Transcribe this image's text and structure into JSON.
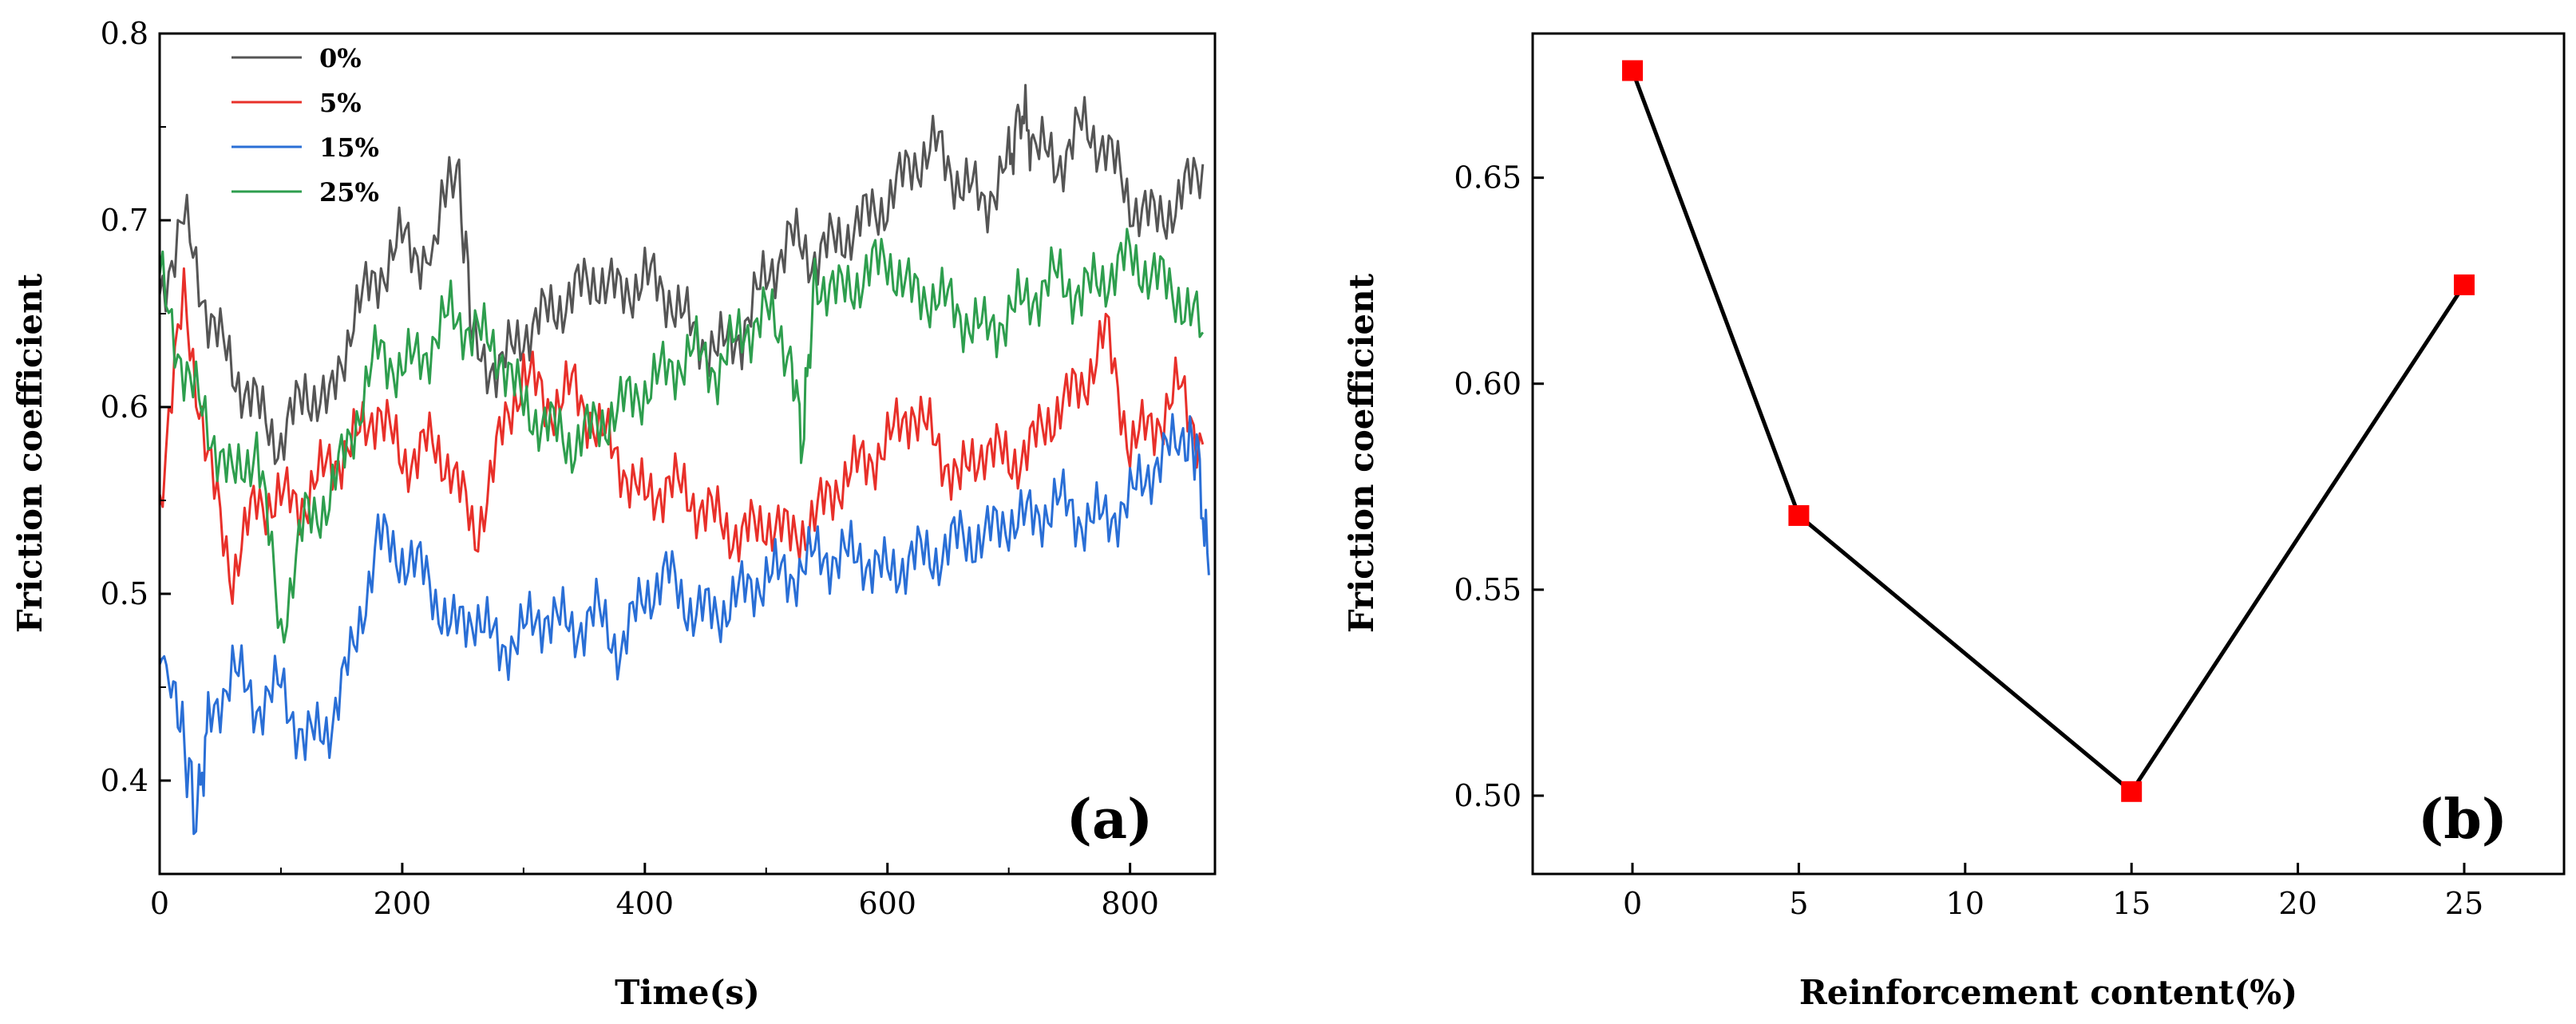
{
  "chart_data": [
    {
      "type": "line",
      "panel_label": "(a)",
      "xlabel": "Time(s)",
      "ylabel": "Friction coefficient",
      "xlim": [
        0,
        870
      ],
      "ylim": [
        0.35,
        0.8
      ],
      "xticks": [
        "0",
        "200",
        "400",
        "600",
        "800"
      ],
      "yticks": [
        "0.4",
        "0.5",
        "0.6",
        "0.7",
        "0.8"
      ],
      "legend_position": "top-left",
      "series": [
        {
          "name": "0%",
          "color": "#555555",
          "x": [
            0,
            20,
            40,
            60,
            80,
            100,
            120,
            140,
            160,
            180,
            200,
            220,
            245,
            260,
            280,
            300,
            320,
            340,
            360,
            380,
            400,
            420,
            440,
            460,
            480,
            500,
            520,
            540,
            560,
            580,
            600,
            620,
            640,
            660,
            680,
            700,
            710,
            720,
            740,
            760,
            780,
            800,
            820,
            840,
            860
          ],
          "y": [
            0.66,
            0.7,
            0.65,
            0.62,
            0.6,
            0.58,
            0.61,
            0.6,
            0.65,
            0.67,
            0.69,
            0.68,
            0.73,
            0.63,
            0.62,
            0.64,
            0.65,
            0.66,
            0.67,
            0.66,
            0.67,
            0.66,
            0.64,
            0.63,
            0.64,
            0.67,
            0.69,
            0.68,
            0.69,
            0.7,
            0.71,
            0.73,
            0.74,
            0.72,
            0.71,
            0.73,
            0.76,
            0.74,
            0.73,
            0.75,
            0.74,
            0.71,
            0.7,
            0.71,
            0.73
          ]
        },
        {
          "name": "5%",
          "color": "#e8302a",
          "x": [
            0,
            20,
            40,
            60,
            80,
            100,
            120,
            140,
            160,
            180,
            200,
            220,
            240,
            260,
            280,
            300,
            320,
            340,
            360,
            380,
            400,
            420,
            440,
            460,
            480,
            500,
            520,
            540,
            560,
            580,
            600,
            620,
            640,
            660,
            680,
            700,
            720,
            740,
            760,
            780,
            800,
            820,
            840,
            860
          ],
          "y": [
            0.55,
            0.66,
            0.57,
            0.51,
            0.55,
            0.55,
            0.55,
            0.57,
            0.58,
            0.6,
            0.57,
            0.58,
            0.57,
            0.53,
            0.58,
            0.62,
            0.6,
            0.61,
            0.59,
            0.57,
            0.55,
            0.56,
            0.55,
            0.54,
            0.53,
            0.54,
            0.53,
            0.54,
            0.56,
            0.57,
            0.58,
            0.6,
            0.58,
            0.56,
            0.58,
            0.57,
            0.58,
            0.6,
            0.61,
            0.64,
            0.58,
            0.59,
            0.61,
            0.58
          ]
        },
        {
          "name": "15%",
          "color": "#2a6fd6",
          "x": [
            0,
            15,
            30,
            40,
            60,
            80,
            100,
            120,
            140,
            160,
            180,
            200,
            220,
            240,
            260,
            280,
            300,
            320,
            340,
            360,
            380,
            400,
            420,
            440,
            460,
            480,
            500,
            520,
            540,
            560,
            580,
            600,
            620,
            640,
            660,
            680,
            700,
            720,
            740,
            760,
            780,
            800,
            820,
            840,
            855,
            865
          ],
          "y": [
            0.47,
            0.44,
            0.38,
            0.43,
            0.46,
            0.44,
            0.45,
            0.42,
            0.43,
            0.47,
            0.53,
            0.52,
            0.51,
            0.48,
            0.49,
            0.47,
            0.48,
            0.49,
            0.48,
            0.49,
            0.47,
            0.5,
            0.51,
            0.49,
            0.49,
            0.5,
            0.51,
            0.51,
            0.52,
            0.52,
            0.52,
            0.51,
            0.52,
            0.52,
            0.53,
            0.53,
            0.54,
            0.54,
            0.55,
            0.54,
            0.54,
            0.55,
            0.57,
            0.58,
            0.58,
            0.51
          ]
        },
        {
          "name": "25%",
          "color": "#2e9e4e",
          "x": [
            0,
            20,
            40,
            60,
            80,
            100,
            120,
            140,
            160,
            180,
            200,
            220,
            240,
            260,
            280,
            300,
            320,
            340,
            360,
            380,
            400,
            420,
            440,
            460,
            480,
            500,
            520,
            530,
            540,
            560,
            580,
            600,
            620,
            640,
            660,
            680,
            700,
            720,
            740,
            760,
            780,
            800,
            820,
            840,
            860
          ],
          "y": [
            0.67,
            0.62,
            0.59,
            0.56,
            0.58,
            0.48,
            0.54,
            0.55,
            0.59,
            0.63,
            0.62,
            0.63,
            0.65,
            0.64,
            0.63,
            0.6,
            0.59,
            0.58,
            0.59,
            0.6,
            0.61,
            0.62,
            0.63,
            0.62,
            0.64,
            0.65,
            0.63,
            0.58,
            0.67,
            0.66,
            0.67,
            0.68,
            0.66,
            0.66,
            0.65,
            0.64,
            0.65,
            0.66,
            0.67,
            0.66,
            0.67,
            0.68,
            0.67,
            0.66,
            0.64
          ]
        }
      ]
    },
    {
      "type": "line",
      "panel_label": "(b)",
      "xlabel": "Reinforcement content(%)",
      "ylabel": "Friction coefficient",
      "xlim": [
        -3,
        28
      ],
      "ylim": [
        0.481,
        0.685
      ],
      "xticks": [
        "0",
        "5",
        "10",
        "15",
        "20",
        "25"
      ],
      "yticks": [
        "0.50",
        "0.55",
        "0.60",
        "0.65"
      ],
      "series": [
        {
          "name": "Friction coefficient",
          "color": "#000000",
          "marker_color": "#ff0000",
          "x": [
            0,
            5,
            15,
            25
          ],
          "y": [
            0.676,
            0.568,
            0.501,
            0.624
          ]
        }
      ]
    }
  ]
}
